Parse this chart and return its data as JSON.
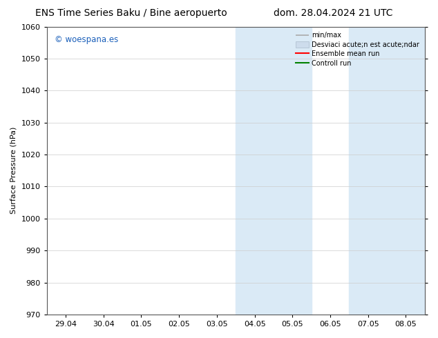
{
  "title_left": "ENS Time Series Baku / Bine aeropuerto",
  "title_right": "dom. 28.04.2024 21 UTC",
  "ylabel": "Surface Pressure (hPa)",
  "ylim": [
    970,
    1060
  ],
  "yticks": [
    970,
    980,
    990,
    1000,
    1010,
    1020,
    1030,
    1040,
    1050,
    1060
  ],
  "xtick_labels": [
    "29.04",
    "30.04",
    "01.05",
    "02.05",
    "03.05",
    "04.05",
    "05.05",
    "06.05",
    "07.05",
    "08.05"
  ],
  "xtick_positions": [
    0,
    1,
    2,
    3,
    4,
    5,
    6,
    7,
    8,
    9
  ],
  "shaded_regions": [
    {
      "xmin": 4.5,
      "xmax": 6.5
    },
    {
      "xmin": 7.5,
      "xmax": 9.5
    }
  ],
  "shade_color": "#daeaf6",
  "watermark_text": "© woespana.es",
  "watermark_color": "#1a5fba",
  "legend_label_1": "min/max",
  "legend_label_2": "Desviaci acute;n est acute;ndar",
  "legend_label_3": "Ensemble mean run",
  "legend_label_4": "Controll run",
  "legend_color_1": "#aaaaaa",
  "legend_color_2": "#cddcec",
  "legend_color_3": "#ff0000",
  "legend_color_4": "#008000",
  "bg_color": "#ffffff",
  "title_fontsize": 10,
  "axis_fontsize": 8,
  "tick_fontsize": 8,
  "grid_color": "#cccccc",
  "spine_color": "#555555"
}
